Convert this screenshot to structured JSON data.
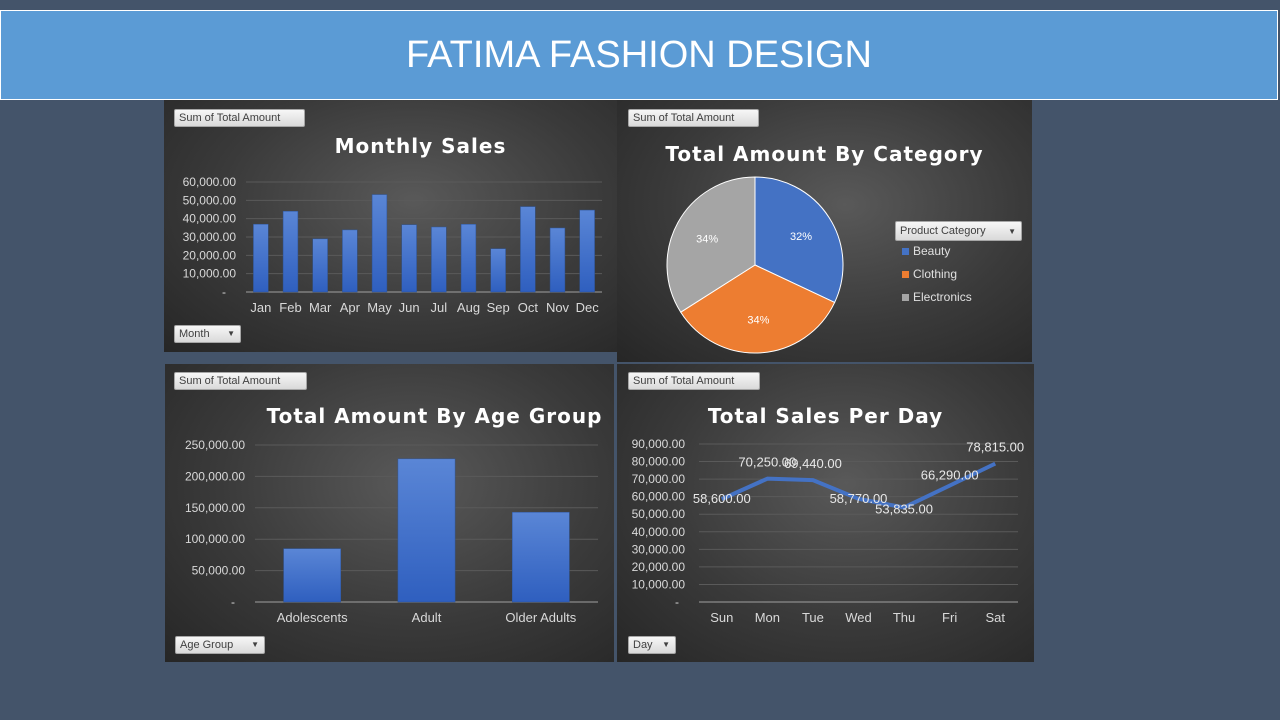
{
  "header": {
    "title": "FATIMA FASHION DESIGN"
  },
  "colors": {
    "banner": "#5b9bd5",
    "background": "#44546a",
    "bar": "#4472c4",
    "beauty": "#4472c4",
    "clothing": "#ed7d31",
    "electronics": "#a5a5a5"
  },
  "chart_data": [
    {
      "type": "bar",
      "title": "Monthly Sales",
      "field_button": "Sum of Total Amount",
      "axis_button": "Month",
      "categories": [
        "Jan",
        "Feb",
        "Mar",
        "Apr",
        "May",
        "Jun",
        "Jul",
        "Aug",
        "Sep",
        "Oct",
        "Nov",
        "Dec"
      ],
      "values": [
        36980,
        44060,
        28990,
        33870,
        53150,
        36715,
        35465,
        36960,
        23620,
        46580,
        34920,
        44690
      ],
      "yticks": [
        "-",
        "10,000.00",
        "20,000.00",
        "30,000.00",
        "40,000.00",
        "50,000.00",
        "60,000.00"
      ],
      "ylim": [
        0,
        60000
      ],
      "grid": true
    },
    {
      "type": "pie",
      "title": "Total Amount By Category",
      "field_button": "Sum of Total Amount",
      "legend_button": "Product Category",
      "legend_position": "right",
      "labels": [
        "Beauty",
        "Clothing",
        "Electronics"
      ],
      "values": [
        32,
        34,
        34
      ],
      "value_labels": [
        "32%",
        "34%",
        "34%"
      ]
    },
    {
      "type": "bar",
      "title": "Total Amount By Age Group",
      "field_button": "Sum of Total Amount",
      "axis_button": "Age Group",
      "categories": [
        "Adolescents",
        "Adult",
        "Older Adults"
      ],
      "values": [
        85000,
        228000,
        143000
      ],
      "yticks": [
        "-",
        "50,000.00",
        "100,000.00",
        "150,000.00",
        "200,000.00",
        "250,000.00"
      ],
      "ylim": [
        0,
        250000
      ],
      "grid": true
    },
    {
      "type": "line",
      "title": "Total Sales Per Day",
      "field_button": "Sum of Total Amount",
      "axis_button": "Day",
      "categories": [
        "Sun",
        "Mon",
        "Tue",
        "Wed",
        "Thu",
        "Fri",
        "Sat"
      ],
      "values": [
        58600,
        70250,
        69440,
        58770,
        53835,
        66290,
        78815
      ],
      "value_labels": [
        "58,600.00",
        "70,250.00",
        "69,440.00",
        "58,770.00",
        "53,835.00",
        "66,290.00",
        "78,815.00"
      ],
      "yticks": [
        "-",
        "10,000.00",
        "20,000.00",
        "30,000.00",
        "40,000.00",
        "50,000.00",
        "60,000.00",
        "70,000.00",
        "80,000.00",
        "90,000.00"
      ],
      "ylim": [
        0,
        90000
      ],
      "grid": true
    }
  ]
}
